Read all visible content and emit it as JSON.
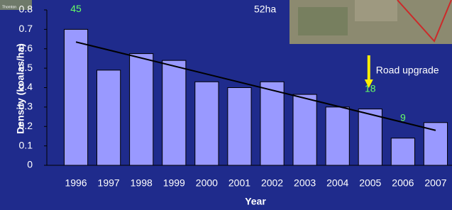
{
  "chart_data": {
    "type": "bar",
    "y_label": "Density (koalas/ha)",
    "x_label": "Year",
    "categories": [
      "1996",
      "1997",
      "1998",
      "1999",
      "2000",
      "2001",
      "2002",
      "2003",
      "2004",
      "2005",
      "2006",
      "2007"
    ],
    "values": [
      0.7,
      0.49,
      0.575,
      0.54,
      0.43,
      0.4,
      0.43,
      0.365,
      0.3,
      0.29,
      0.14,
      0.22
    ],
    "color": "#9999ff",
    "ylim": [
      0,
      0.8
    ],
    "yticks": [
      0,
      0.1,
      0.2,
      0.3,
      0.4,
      0.5,
      0.6,
      0.7,
      0.8
    ],
    "trendline": {
      "start": 0.635,
      "end": 0.18,
      "color": "#000000"
    },
    "annotations": [
      {
        "category": "1996",
        "text": "45"
      },
      {
        "category": "2005",
        "text": "18"
      },
      {
        "category": "2006",
        "text": "9"
      }
    ],
    "event": {
      "category": "2005",
      "text": "Road upgrade"
    },
    "inset_label": "52ha",
    "inset_caption": "Thornton"
  }
}
